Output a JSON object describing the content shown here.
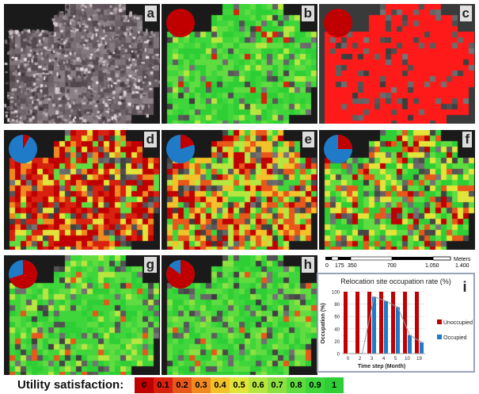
{
  "panels": [
    {
      "id": "a",
      "label": "a",
      "mode": "satellite",
      "pie": null
    },
    {
      "id": "b",
      "label": "b",
      "mode": "green",
      "pie": 1.0
    },
    {
      "id": "c",
      "label": "c",
      "mode": "red",
      "pie": 1.0
    },
    {
      "id": "d",
      "label": "d",
      "mode": "mix_red",
      "pie": 0.08
    },
    {
      "id": "e",
      "label": "e",
      "mode": "mix_red2",
      "pie": 0.2
    },
    {
      "id": "f",
      "label": "f",
      "mode": "mix_green",
      "pie": 0.25
    },
    {
      "id": "g",
      "label": "g",
      "mode": "green2",
      "pie": 0.7
    },
    {
      "id": "h",
      "label": "h",
      "mode": "green3",
      "pie": 0.85
    }
  ],
  "pie_colors": {
    "unoccupied": "#c00000",
    "occupied": "#1f7bc8"
  },
  "scalebar": {
    "ticks": [
      "0",
      "175",
      "350",
      "700",
      "1.050",
      "1.400"
    ],
    "unit": "Meters"
  },
  "chart_data": {
    "type": "bar",
    "title": "Relocation site occupation rate (%)",
    "xlabel": "Time step (Month)",
    "ylabel": "Occupation (%)",
    "categories": [
      "0",
      "2",
      "3",
      "4",
      "5",
      "10",
      "19"
    ],
    "ylim": [
      0,
      100
    ],
    "yticks": [
      0,
      20,
      40,
      60,
      80,
      100
    ],
    "series": [
      {
        "name": "Unoccupied",
        "color": "#c00000",
        "values": [
          100,
          100,
          100,
          100,
          100,
          100,
          100
        ]
      },
      {
        "name": "Occupied",
        "color": "#1f7bc8",
        "values": [
          0,
          0,
          92,
          85,
          75,
          30,
          18
        ]
      }
    ],
    "legend": "right",
    "panel_label": "i"
  },
  "legend": {
    "title": "Utility satisfaction:",
    "values": [
      "0",
      "0.1",
      "0.2",
      "0.3",
      "0.4",
      "0.5",
      "0.6",
      "0.7",
      "0.8",
      "0.9",
      "1"
    ],
    "colors": [
      "#c00000",
      "#d9210f",
      "#e8581a",
      "#f08a20",
      "#f3c22b",
      "#e2e43a",
      "#b6e63f",
      "#8be140",
      "#5fdc40",
      "#3fd63b",
      "#2ecf35"
    ]
  }
}
